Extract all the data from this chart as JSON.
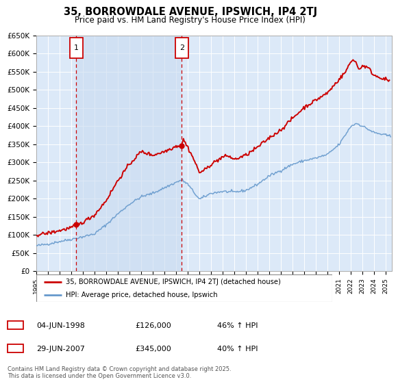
{
  "title": "35, BORROWDALE AVENUE, IPSWICH, IP4 2TJ",
  "subtitle": "Price paid vs. HM Land Registry's House Price Index (HPI)",
  "legend_label_red": "35, BORROWDALE AVENUE, IPSWICH, IP4 2TJ (detached house)",
  "legend_label_blue": "HPI: Average price, detached house, Ipswich",
  "annotation1_date": "04-JUN-1998",
  "annotation1_price": "£126,000",
  "annotation1_hpi": "46% ↑ HPI",
  "annotation1_year": 1998.43,
  "annotation2_date": "29-JUN-2007",
  "annotation2_price": "£345,000",
  "annotation2_hpi": "40% ↑ HPI",
  "annotation2_year": 2007.49,
  "ylabel_ticks": [
    "£0",
    "£50K",
    "£100K",
    "£150K",
    "£200K",
    "£250K",
    "£300K",
    "£350K",
    "£400K",
    "£450K",
    "£500K",
    "£550K",
    "£600K",
    "£650K"
  ],
  "ytick_values": [
    0,
    50000,
    100000,
    150000,
    200000,
    250000,
    300000,
    350000,
    400000,
    450000,
    500000,
    550000,
    600000,
    650000
  ],
  "plot_background": "#dce9f8",
  "red_line_color": "#cc0000",
  "blue_line_color": "#6699cc",
  "footer_text": "Contains HM Land Registry data © Crown copyright and database right 2025.\nThis data is licensed under the Open Government Licence v3.0.",
  "xmin": 1995.0,
  "xmax": 2025.5,
  "ymin": 0,
  "ymax": 650000
}
